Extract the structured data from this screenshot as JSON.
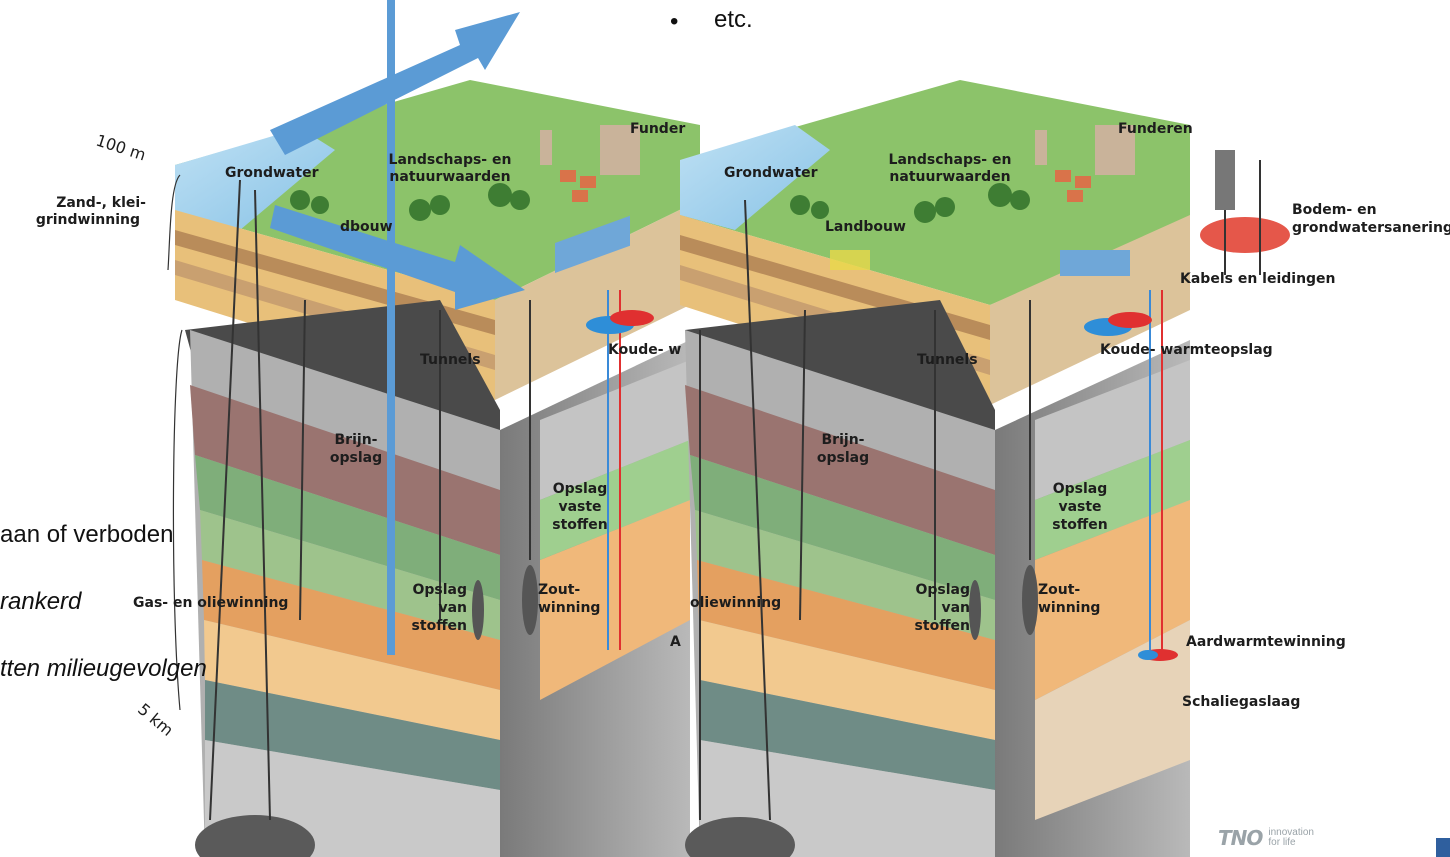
{
  "slide": {
    "bullet_symbol": "•",
    "bullet_text": "etc.",
    "left_lines": [
      "aan of verboden",
      "rankerd",
      "tten milieugevolgen"
    ]
  },
  "left_diagram": {
    "scale_top": "100 m",
    "scale_bottom": "5 km",
    "labels": {
      "zand": "Zand-, klei-",
      "grind": "grindwinning",
      "grondwater": "Grondwater",
      "landschaps1": "Landschaps- en",
      "landschaps2": "natuurwaarden",
      "landbouw": "dbouw",
      "funderen": "Funder",
      "tunnels": "Tunnels",
      "koude": "Koude- w",
      "brijn1": "Brijn-",
      "brijn2": "opslag",
      "opslag_v1": "Opslag",
      "opslag_v2": "vaste",
      "opslag_v3": "stoffen",
      "gas": "Gas- en oliewinning",
      "opslag_s1": "Opslag",
      "opslag_s2": "van",
      "opslag_s3": "stoffen",
      "zout1": "Zout-",
      "zout2": "winning",
      "aard": "A"
    }
  },
  "right_diagram": {
    "labels": {
      "grondwater": "Grondwater",
      "landschaps1": "Landschaps- en",
      "landschaps2": "natuurwaarden",
      "landbouw": "Landbouw",
      "funderen": "Funderen",
      "bodem1": "Bodem- en",
      "bodem2": "grondwatersanering",
      "kabels": "Kabels en leidingen",
      "tunnels": "Tunnels",
      "koude": "Koude- warmteopslag",
      "brijn1": "Brijn-",
      "brijn2": "opslag",
      "opslag_v1": "Opslag",
      "opslag_v2": "vaste",
      "opslag_v3": "stoffen",
      "olie": "oliewinning",
      "opslag_s1": "Opslag",
      "opslag_s2": "van",
      "opslag_s3": "stoffen",
      "zout1": "Zout-",
      "zout2": "winning",
      "aard": "Aardwarmtewinning",
      "schalie": "Schaliegaslaag"
    }
  },
  "logo": {
    "mark": "TNO",
    "tag1": "innovation",
    "tag2": "for life"
  },
  "colors": {
    "arrow": "#5b9bd5",
    "grass": "#8cc36a",
    "water": "#a9d4ee",
    "sand": "#e8c07a",
    "dark_layer": "#4a4a4a"
  }
}
